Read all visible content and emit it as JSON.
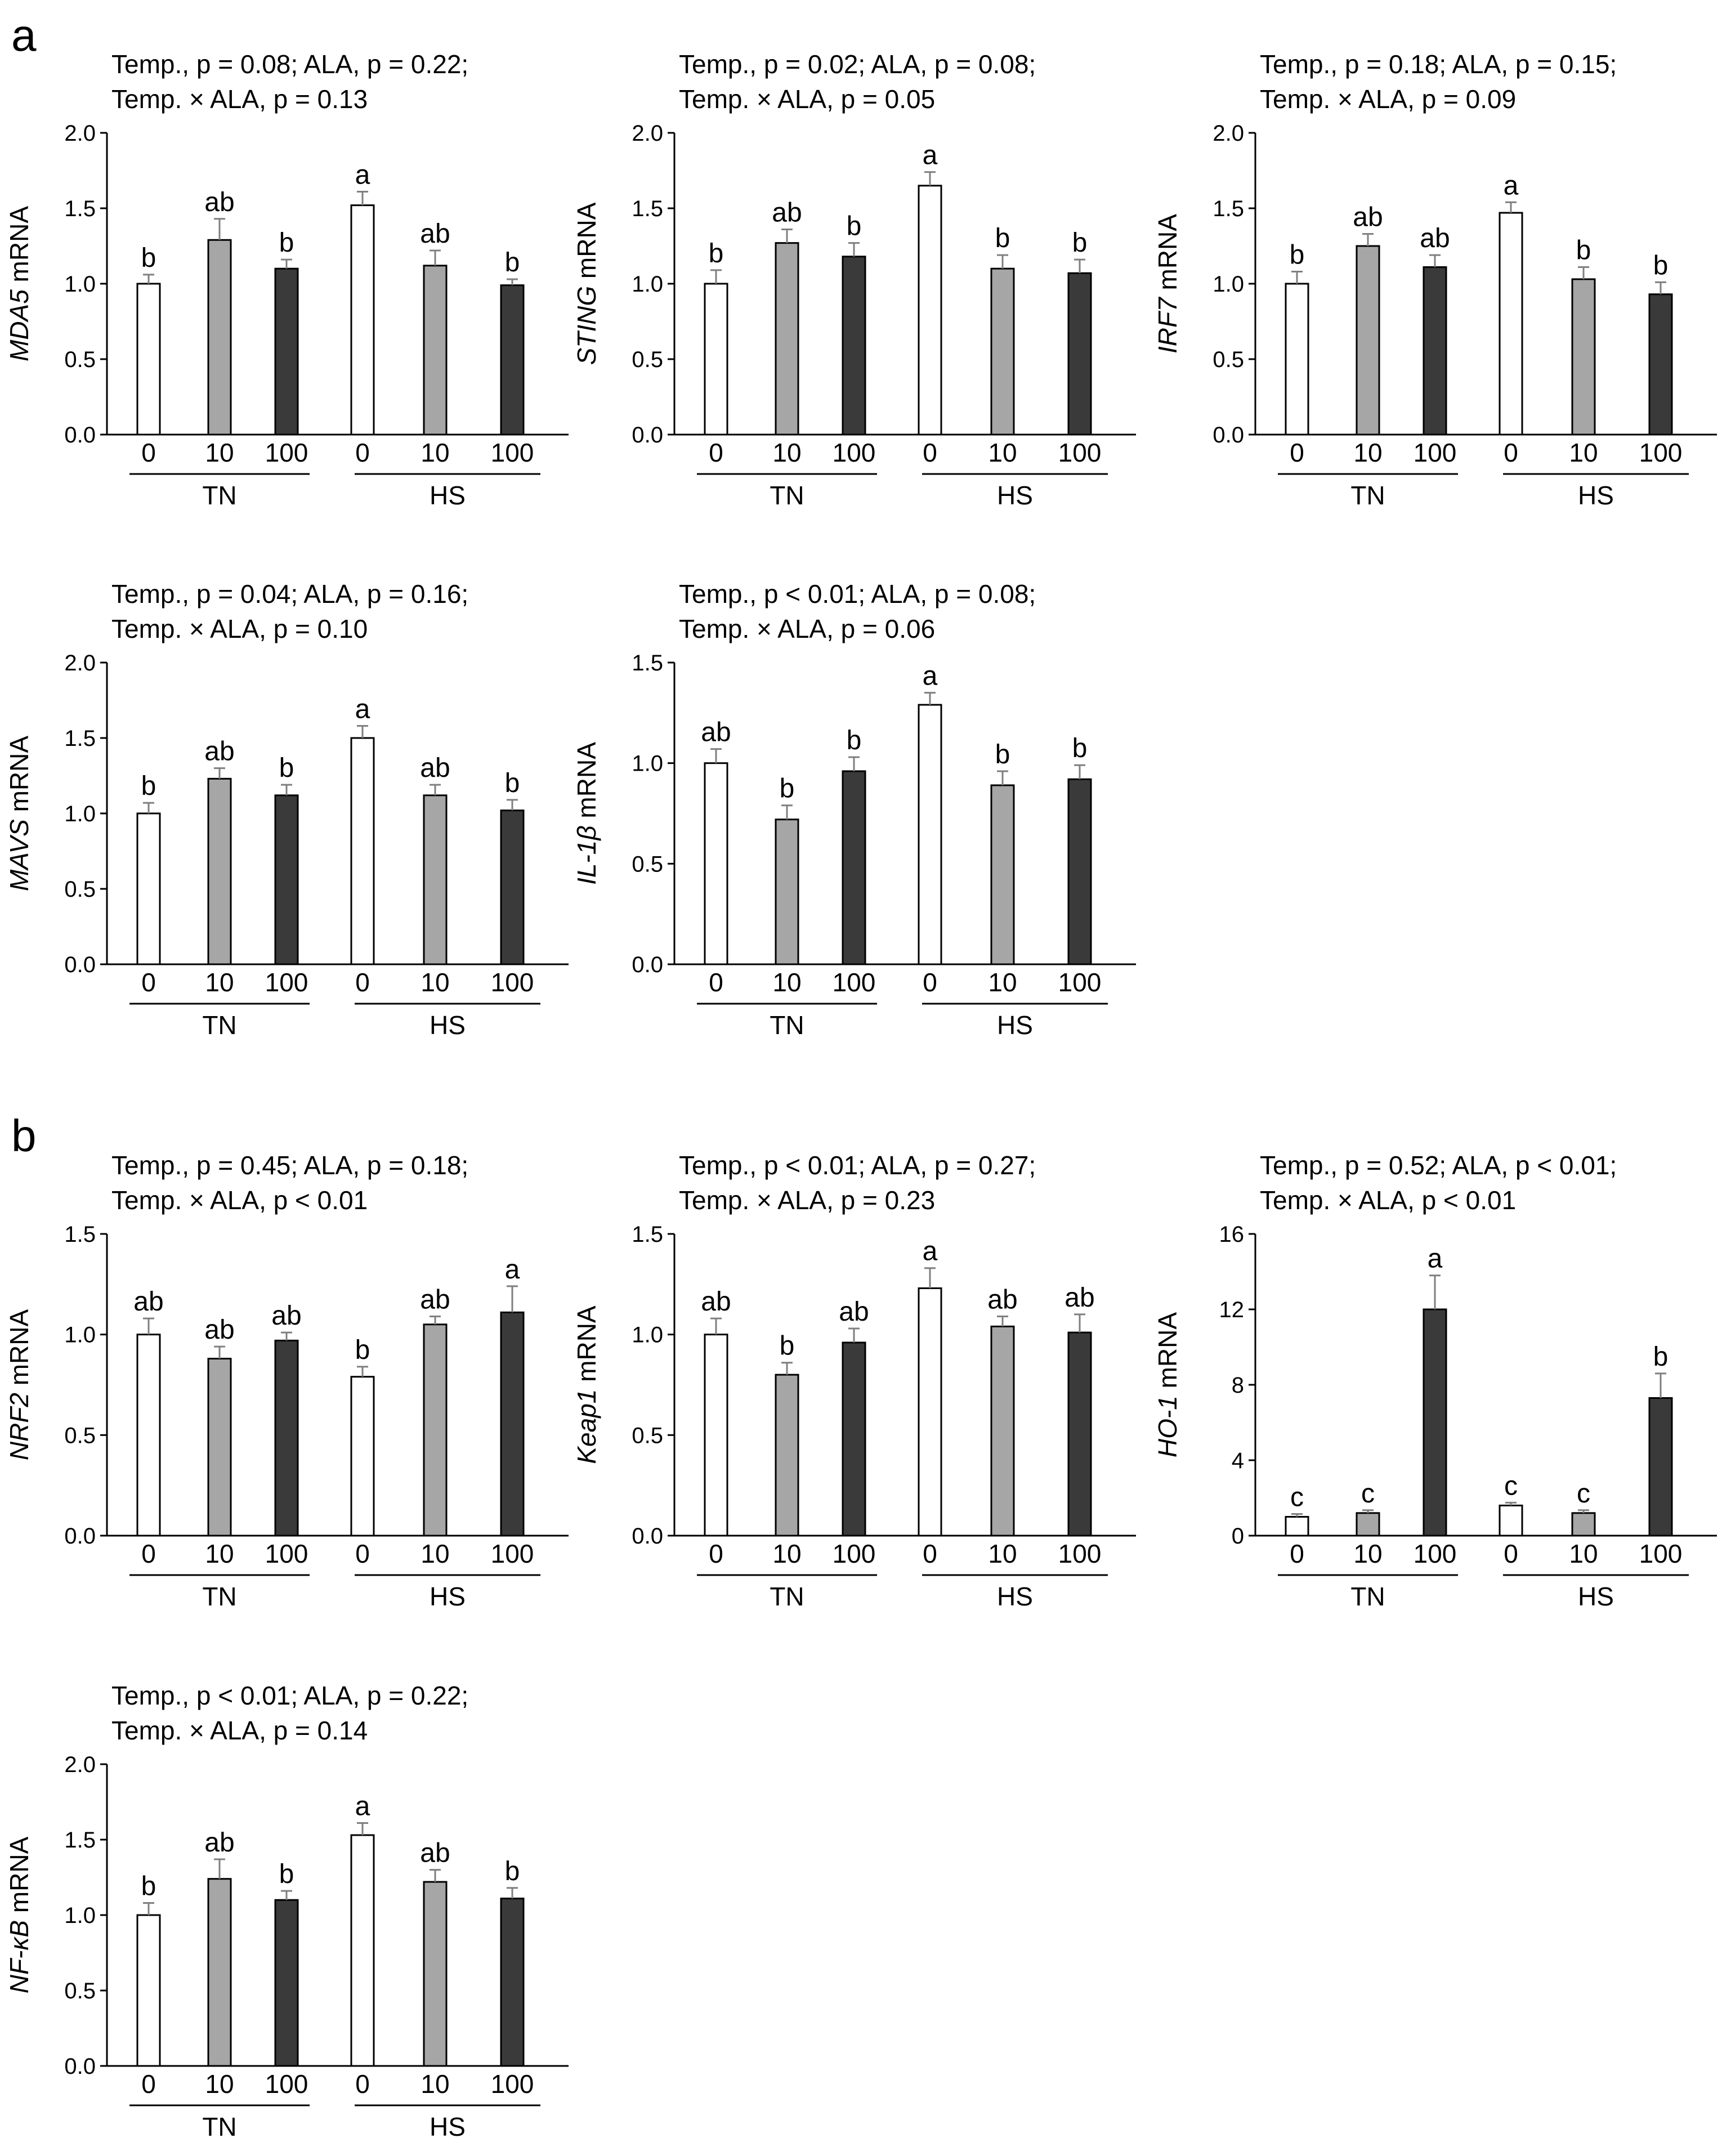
{
  "panel_labels": [
    "a",
    "b"
  ],
  "colors": {
    "0": "#ffffff",
    "10": "#a6a6a6",
    "100": "#3a3a3a",
    "edge": "#000000",
    "error": "#7f7f7f"
  },
  "chart_data": [
    {
      "id": "mda5",
      "type": "bar",
      "panel": "a",
      "gene": "MDA5",
      "ylabel_suffix": " mRNA",
      "stat_line1": "Temp., p = 0.08; ALA, p = 0.22;",
      "stat_line2": "Temp. × ALA, p = 0.13",
      "yticks": [
        "0.0",
        "0.5",
        "1.0",
        "1.5",
        "2.0"
      ],
      "ymax": 2.0,
      "categories": [
        "0",
        "10",
        "100",
        "0",
        "10",
        "100"
      ],
      "groups": [
        "TN",
        "HS"
      ],
      "values": [
        1.0,
        1.29,
        1.1,
        1.52,
        1.12,
        0.99
      ],
      "errors": [
        0.06,
        0.14,
        0.06,
        0.09,
        0.1,
        0.04
      ],
      "letters": [
        "b",
        "ab",
        "b",
        "a",
        "ab",
        "b"
      ]
    },
    {
      "id": "sting",
      "type": "bar",
      "panel": "a",
      "gene": "STING",
      "ylabel_suffix": " mRNA",
      "stat_line1": "Temp., p = 0.02; ALA, p = 0.08;",
      "stat_line2": "Temp. × ALA, p = 0.05",
      "yticks": [
        "0.0",
        "0.5",
        "1.0",
        "1.5",
        "2.0"
      ],
      "ymax": 2.0,
      "categories": [
        "0",
        "10",
        "100",
        "0",
        "10",
        "100"
      ],
      "groups": [
        "TN",
        "HS"
      ],
      "values": [
        1.0,
        1.27,
        1.18,
        1.65,
        1.1,
        1.07
      ],
      "errors": [
        0.09,
        0.09,
        0.09,
        0.09,
        0.09,
        0.09
      ],
      "letters": [
        "b",
        "ab",
        "b",
        "a",
        "b",
        "b"
      ]
    },
    {
      "id": "irf7",
      "type": "bar",
      "panel": "a",
      "gene": "IRF7",
      "ylabel_suffix": " mRNA",
      "stat_line1": "Temp., p = 0.18; ALA, p = 0.15;",
      "stat_line2": "Temp. × ALA, p = 0.09",
      "yticks": [
        "0.0",
        "0.5",
        "1.0",
        "1.5",
        "2.0"
      ],
      "ymax": 2.0,
      "categories": [
        "0",
        "10",
        "100",
        "0",
        "10",
        "100"
      ],
      "groups": [
        "TN",
        "HS"
      ],
      "values": [
        1.0,
        1.25,
        1.11,
        1.47,
        1.03,
        0.93
      ],
      "errors": [
        0.08,
        0.08,
        0.08,
        0.07,
        0.08,
        0.08
      ],
      "letters": [
        "b",
        "ab",
        "ab",
        "a",
        "b",
        "b"
      ]
    },
    {
      "id": "mavs",
      "type": "bar",
      "panel": "a",
      "gene": "MAVS",
      "ylabel_suffix": " mRNA",
      "stat_line1": "Temp., p = 0.04; ALA, p = 0.16;",
      "stat_line2": "Temp. × ALA, p = 0.10",
      "yticks": [
        "0.0",
        "0.5",
        "1.0",
        "1.5",
        "2.0"
      ],
      "ymax": 2.0,
      "categories": [
        "0",
        "10",
        "100",
        "0",
        "10",
        "100"
      ],
      "groups": [
        "TN",
        "HS"
      ],
      "values": [
        1.0,
        1.23,
        1.12,
        1.5,
        1.12,
        1.02
      ],
      "errors": [
        0.07,
        0.07,
        0.07,
        0.08,
        0.07,
        0.07
      ],
      "letters": [
        "b",
        "ab",
        "b",
        "a",
        "ab",
        "b"
      ]
    },
    {
      "id": "il1b",
      "type": "bar",
      "panel": "a",
      "gene": "IL-1β",
      "ylabel_suffix": " mRNA",
      "stat_line1": "Temp., p < 0.01; ALA, p = 0.08;",
      "stat_line2": "Temp. × ALA, p = 0.06",
      "yticks": [
        "0.0",
        "0.5",
        "1.0",
        "1.5"
      ],
      "ymax": 1.5,
      "categories": [
        "0",
        "10",
        "100",
        "0",
        "10",
        "100"
      ],
      "groups": [
        "TN",
        "HS"
      ],
      "values": [
        1.0,
        0.72,
        0.96,
        1.29,
        0.89,
        0.92
      ],
      "errors": [
        0.07,
        0.07,
        0.07,
        0.06,
        0.07,
        0.07
      ],
      "letters": [
        "ab",
        "b",
        "b",
        "a",
        "b",
        "b"
      ]
    },
    {
      "id": "nrf2",
      "type": "bar",
      "panel": "b",
      "gene": "NRF2",
      "ylabel_suffix": " mRNA",
      "stat_line1": "Temp., p = 0.45; ALA, p = 0.18;",
      "stat_line2": "Temp. × ALA, p < 0.01",
      "yticks": [
        "0.0",
        "0.5",
        "1.0",
        "1.5"
      ],
      "ymax": 1.5,
      "categories": [
        "0",
        "10",
        "100",
        "0",
        "10",
        "100"
      ],
      "groups": [
        "TN",
        "HS"
      ],
      "values": [
        1.0,
        0.88,
        0.97,
        0.79,
        1.05,
        1.11
      ],
      "errors": [
        0.08,
        0.06,
        0.04,
        0.05,
        0.04,
        0.13
      ],
      "letters": [
        "ab",
        "ab",
        "ab",
        "b",
        "ab",
        "a"
      ]
    },
    {
      "id": "keap1",
      "type": "bar",
      "panel": "b",
      "gene": "Keap1",
      "ylabel_suffix": " mRNA",
      "stat_line1": "Temp., p < 0.01; ALA, p = 0.27;",
      "stat_line2": "Temp. × ALA, p = 0.23",
      "yticks": [
        "0.0",
        "0.5",
        "1.0",
        "1.5"
      ],
      "ymax": 1.5,
      "categories": [
        "0",
        "10",
        "100",
        "0",
        "10",
        "100"
      ],
      "groups": [
        "TN",
        "HS"
      ],
      "values": [
        1.0,
        0.8,
        0.96,
        1.23,
        1.04,
        1.01
      ],
      "errors": [
        0.08,
        0.06,
        0.07,
        0.1,
        0.05,
        0.09
      ],
      "letters": [
        "ab",
        "b",
        "ab",
        "a",
        "ab",
        "ab"
      ]
    },
    {
      "id": "ho1",
      "type": "bar",
      "panel": "b",
      "gene": "HO-1",
      "ylabel_suffix": " mRNA",
      "stat_line1": "Temp., p = 0.52; ALA, p < 0.01;",
      "stat_line2": "Temp. × ALA, p < 0.01",
      "yticks": [
        "0",
        "4",
        "8",
        "12",
        "16"
      ],
      "ymax": 16,
      "categories": [
        "0",
        "10",
        "100",
        "0",
        "10",
        "100"
      ],
      "groups": [
        "TN",
        "HS"
      ],
      "values": [
        1.0,
        1.2,
        12.0,
        1.6,
        1.2,
        7.3
      ],
      "errors": [
        0.15,
        0.15,
        1.8,
        0.15,
        0.15,
        1.3
      ],
      "letters": [
        "c",
        "c",
        "a",
        "c",
        "c",
        "b"
      ]
    },
    {
      "id": "nfkb",
      "type": "bar",
      "panel": "b",
      "gene": "NF-κB",
      "ylabel_suffix": " mRNA",
      "stat_line1": "Temp., p < 0.01; ALA, p = 0.22;",
      "stat_line2": "Temp. × ALA, p = 0.14",
      "yticks": [
        "0.0",
        "0.5",
        "1.0",
        "1.5",
        "2.0"
      ],
      "ymax": 2.0,
      "categories": [
        "0",
        "10",
        "100",
        "0",
        "10",
        "100"
      ],
      "groups": [
        "TN",
        "HS"
      ],
      "values": [
        1.0,
        1.24,
        1.1,
        1.53,
        1.22,
        1.11
      ],
      "errors": [
        0.08,
        0.13,
        0.06,
        0.08,
        0.08,
        0.07
      ],
      "letters": [
        "b",
        "ab",
        "b",
        "a",
        "ab",
        "b"
      ]
    }
  ]
}
